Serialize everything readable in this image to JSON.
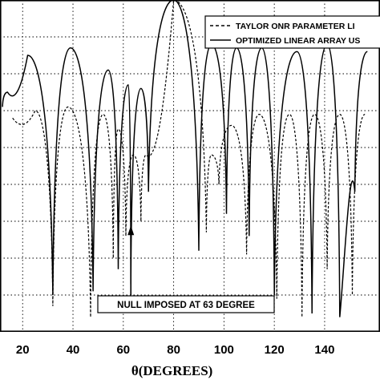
{
  "chart_data": {
    "type": "line",
    "title": "",
    "xlabel": "θ(DEGREES)",
    "ylabel": "",
    "xlim": [
      11,
      162
    ],
    "ylim": [
      -90,
      0
    ],
    "x_ticks": [
      20,
      40,
      60,
      80,
      100,
      120,
      140
    ],
    "x_tick_labels": [
      "20",
      "40",
      "60",
      "80",
      "100",
      "120",
      "140"
    ],
    "y_ticks": [
      0,
      -10,
      -20,
      -30,
      -40,
      -50,
      -60,
      -70,
      -80
    ],
    "grid": true,
    "legend_position": "top-right",
    "series": [
      {
        "name": "TAYLOR ONR PARAMETER LI",
        "line_style": "dashed",
        "color": "#000000",
        "main_lobe_peak": [
          80,
          0
        ],
        "side_lobe_peaks": [
          [
            16,
            -32
          ],
          [
            25,
            -30
          ],
          [
            38,
            -29
          ],
          [
            52,
            -31
          ],
          [
            58,
            -35
          ],
          [
            64,
            -42
          ],
          [
            69,
            -42
          ],
          [
            95,
            -42
          ],
          [
            103,
            -34
          ],
          [
            114,
            -31
          ],
          [
            126,
            -31
          ],
          [
            136,
            -31
          ],
          [
            146,
            -31
          ],
          [
            156,
            -31
          ]
        ],
        "nulls": [
          [
            32,
            -83
          ],
          [
            47,
            -86
          ],
          [
            56,
            -70
          ],
          [
            61,
            -64
          ],
          [
            67,
            -60
          ],
          [
            93,
            -63
          ],
          [
            98,
            -50
          ],
          [
            109,
            -69
          ],
          [
            121,
            -81
          ],
          [
            131,
            -86
          ],
          [
            141,
            -73
          ],
          [
            151,
            -80
          ]
        ]
      },
      {
        "name": "OPTIMIZED LINEAR ARRAY US",
        "line_style": "solid",
        "color": "#000000",
        "main_lobe_peak": [
          80,
          0
        ],
        "side_lobe_peaks": [
          [
            14,
            -25
          ],
          [
            22,
            -15
          ],
          [
            39,
            -13
          ],
          [
            54,
            -19
          ],
          [
            62,
            -23
          ],
          [
            67,
            -24
          ],
          [
            95,
            -12
          ],
          [
            105,
            -13
          ],
          [
            115,
            -13
          ],
          [
            129,
            -14
          ],
          [
            141,
            -12
          ],
          [
            157,
            -14
          ]
        ],
        "nulls": [
          [
            12,
            -29
          ],
          [
            32,
            -80
          ],
          [
            48,
            -79
          ],
          [
            58,
            -73
          ],
          [
            63,
            -77
          ],
          [
            70,
            -52
          ],
          [
            90,
            -68
          ],
          [
            101,
            -58
          ],
          [
            110,
            -64
          ],
          [
            120,
            -80
          ],
          [
            135,
            -85
          ],
          [
            146,
            -86
          ],
          [
            152,
            -52
          ]
        ]
      }
    ],
    "annotations": [
      {
        "text": "NULL IMPOSED AT 63 DEGREE",
        "points_to": [
          63,
          -62
        ]
      }
    ]
  }
}
